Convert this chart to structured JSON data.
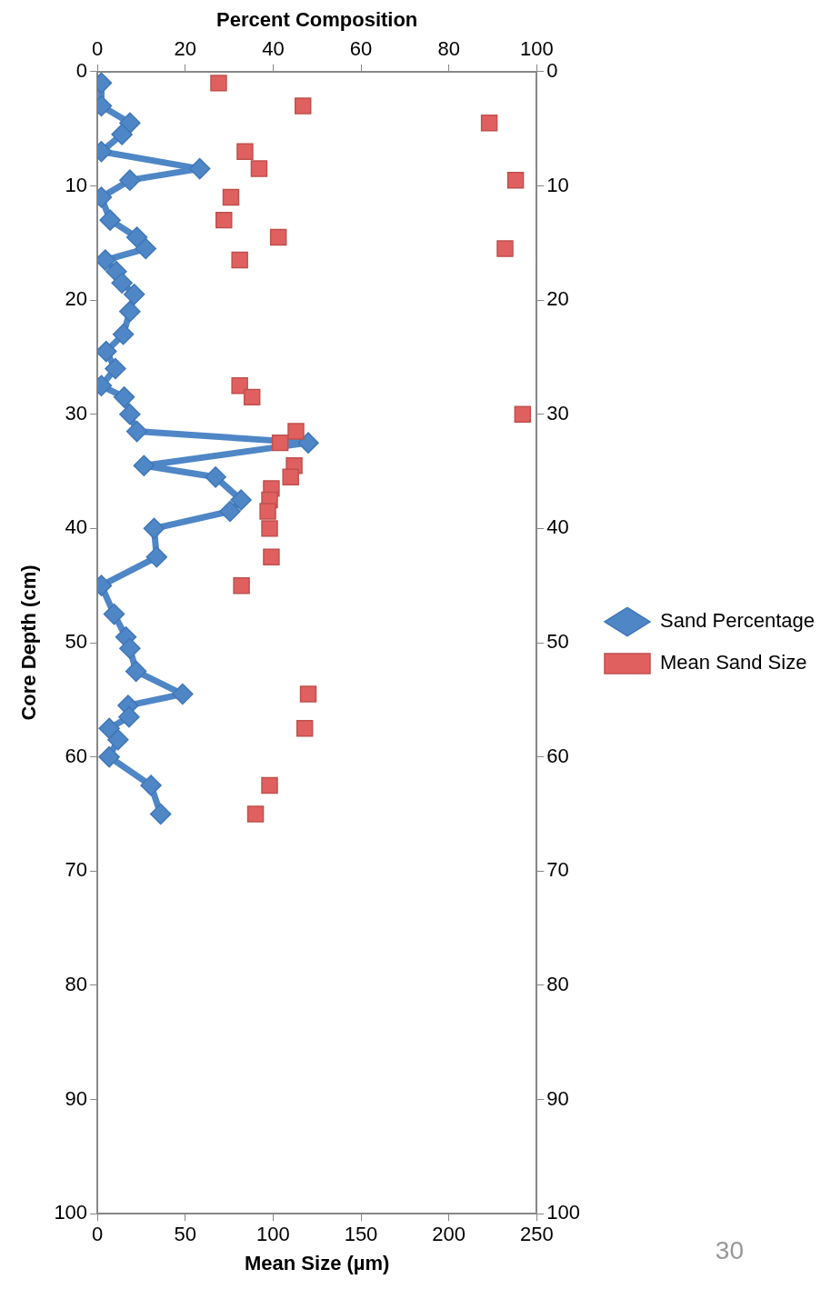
{
  "chart_data": {
    "type": "line",
    "xlabel": "Mean Size (µm)",
    "x2label": "Percent Composition",
    "ylabel": "Core Depth (cm)",
    "xlim": [
      0,
      250
    ],
    "xticks": [
      0,
      50,
      100,
      150,
      200,
      250
    ],
    "x2lim": [
      0,
      100
    ],
    "x2ticks": [
      0,
      20,
      40,
      60,
      80,
      100
    ],
    "ylim": [
      100,
      0
    ],
    "yticks": [
      0,
      10,
      20,
      30,
      40,
      50,
      60,
      70,
      80,
      90,
      100
    ],
    "y2lim": [
      100,
      0
    ],
    "y2ticks": [
      0,
      10,
      20,
      30,
      40,
      50,
      60,
      70,
      80,
      90,
      100
    ],
    "grid": false,
    "legend": "right",
    "line_style": "solid",
    "annotations": [
      "30"
    ],
    "series": [
      {
        "name": "Sand Percentage",
        "type": "line",
        "axis": "x2",
        "marker": "diamond",
        "color": "#4f86c6",
        "x": [
          0.9,
          0.9,
          7.4,
          5.6,
          0.9,
          23.3,
          7.4,
          0.9,
          2.9,
          9,
          11,
          1.8,
          4.3,
          5.6,
          8.4,
          7.4,
          5.9,
          2,
          4.1,
          0.9,
          6.1,
          7.4,
          9,
          48,
          10.6,
          26.9,
          null,
          32.7,
          30.2,
          12.9,
          13.5,
          0.9,
          3.8,
          6.5,
          7.4,
          8.8,
          19.4,
          7,
          7.2,
          2.7,
          4.7,
          2.7,
          12.2,
          14.4
        ],
        "values": [
          1,
          3,
          4.5,
          5.5,
          7,
          8.5,
          9.5,
          11,
          13,
          14.5,
          15.5,
          16.5,
          17.5,
          18.5,
          19.5,
          21,
          23,
          24.5,
          26,
          27.5,
          28.5,
          30,
          31.5,
          32.5,
          34.5,
          35.5,
          null,
          37.5,
          38.5,
          40,
          42.5,
          45,
          47.5,
          49.5,
          50.5,
          52.5,
          54.5,
          55.5,
          56.5,
          57.5,
          58.5,
          60,
          62.5,
          65
        ]
      },
      {
        "name": "Mean Sand Size",
        "type": "scatter",
        "marker": "square",
        "color": "#e06060",
        "x": [
          69,
          117,
          223,
          84,
          92,
          238,
          76,
          72,
          103,
          232,
          81,
          81,
          88,
          242,
          113,
          104,
          112,
          110,
          99,
          98,
          97,
          98,
          99,
          82,
          120,
          118,
          98,
          90
        ],
        "values": [
          1,
          3,
          4.5,
          7,
          8.5,
          9.5,
          11,
          13,
          14.5,
          15.5,
          16.5,
          27.5,
          28.5,
          30,
          31.5,
          32.5,
          34.5,
          35.5,
          36.5,
          37.5,
          38.5,
          40,
          42.5,
          45,
          54.5,
          57.5,
          62.5,
          65
        ]
      }
    ]
  }
}
